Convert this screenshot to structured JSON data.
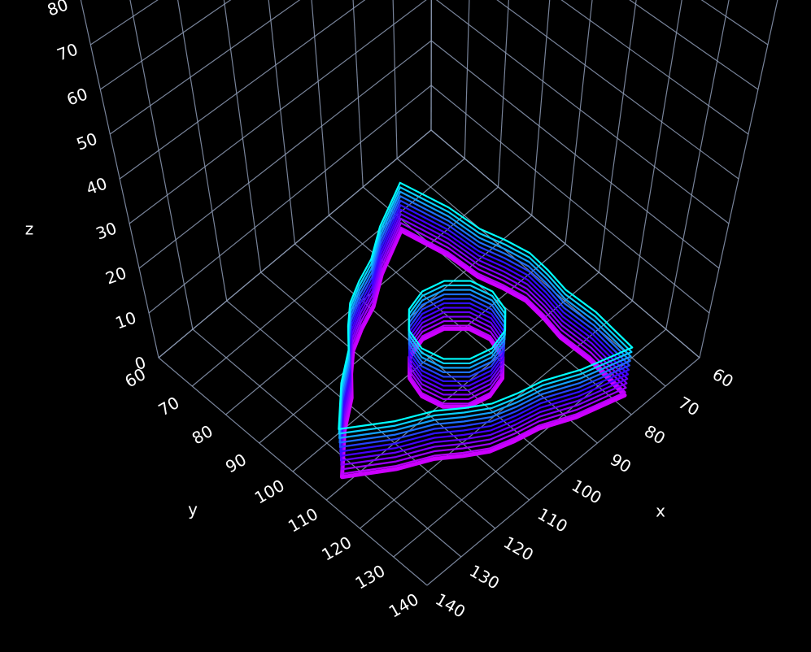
{
  "chart_data": {
    "type": "line3d",
    "x_label": "x",
    "y_label": "y",
    "z_label": "z",
    "xlim": [
      60,
      140
    ],
    "ylim": [
      60,
      140
    ],
    "zlim": [
      0,
      80
    ],
    "xticks": [
      60,
      70,
      80,
      90,
      100,
      110,
      120,
      130,
      140
    ],
    "yticks": [
      60,
      70,
      80,
      90,
      100,
      110,
      120,
      130,
      140
    ],
    "zticks": [
      0,
      10,
      20,
      30,
      40,
      50,
      60,
      70,
      80
    ],
    "grid": true,
    "colorscale": [
      "#cc00ff",
      "#3300ff",
      "#00ffff"
    ],
    "layer_z": [
      0.3,
      1,
      2,
      3,
      4,
      5,
      6,
      7,
      8,
      9,
      10,
      11
    ],
    "outline": {
      "x": [
        133.9,
        124.5,
        117.1,
        112.4,
        107.6,
        102.2,
        96.4,
        88.9,
        77.9,
        76.9,
        77.3,
        76.4,
        76.0,
        77.2,
        78.9,
        79.6,
        82.2,
        92.7,
        99.6,
        105.2,
        110.3,
        114.6,
        118.7,
        125.5
      ],
      "y": [
        108.5,
        115.1,
        118.9,
        122.6,
        125.8,
        127.6,
        129.0,
        132.5,
        135.8,
        124.4,
        116.1,
        110.2,
        104.5,
        98.8,
        93.1,
        84.9,
        73.6,
        78.5,
        83.0,
        85.2,
        87.8,
        91.6,
        95.9,
        100.7
      ]
    },
    "hole": {
      "x": [
        108,
        106.7,
        103,
        98,
        93,
        89.3,
        88,
        89.3,
        93,
        98,
        103,
        106.7
      ],
      "y": [
        106,
        111,
        114.7,
        116,
        114.7,
        111,
        106,
        101,
        97.3,
        96,
        97.3,
        101
      ]
    }
  }
}
